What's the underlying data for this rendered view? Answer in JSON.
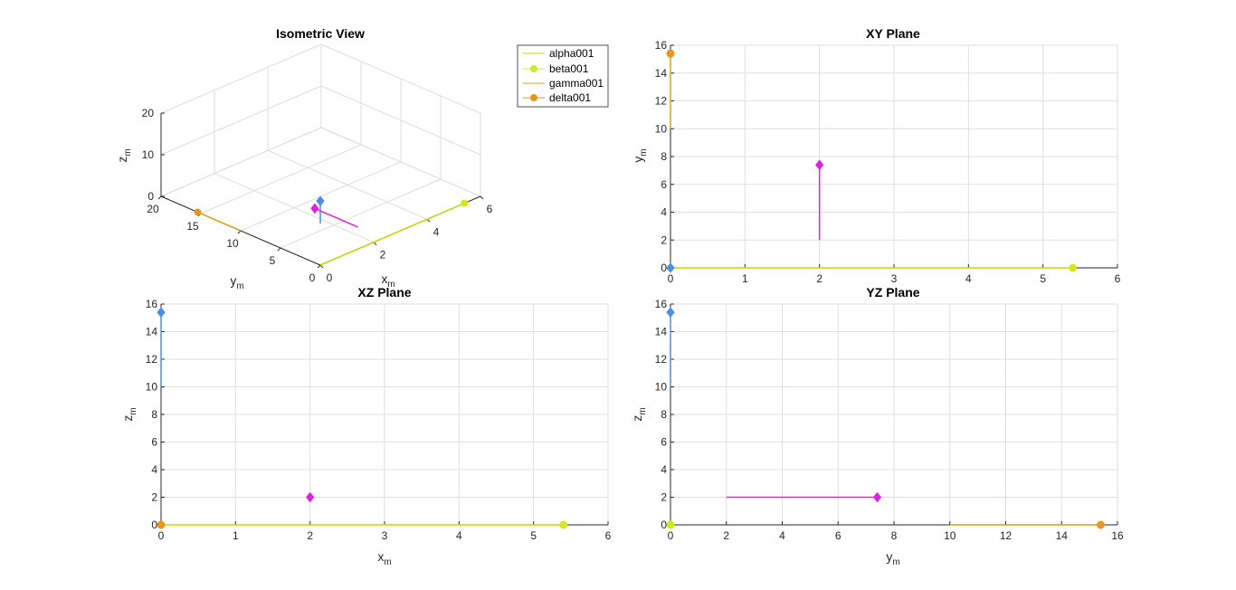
{
  "colors": {
    "alpha": "#c8d400",
    "beta": "#d4e81e",
    "gamma": "#d9a11a",
    "delta": "#e8961f",
    "blue": "#4a8fe0",
    "magenta": "#e020e0"
  },
  "legend": {
    "entries": [
      "alpha001",
      "beta001",
      "gamma001",
      "delta001"
    ]
  },
  "chart_data": [
    {
      "id": "iso",
      "type": "line",
      "title": "Isometric View",
      "xlabel": "x",
      "xlabel_sub": "m",
      "ylabel": "y",
      "ylabel_sub": "m",
      "zlabel": "z",
      "zlabel_sub": "m",
      "xlim": [
        0,
        6
      ],
      "ylim": [
        0,
        20
      ],
      "zlim": [
        0,
        20
      ],
      "xticks": [
        "0",
        "2",
        "4",
        "6"
      ],
      "yticks": [
        "0",
        "5",
        "10",
        "15",
        "20"
      ],
      "zticks": [
        "0",
        "10",
        "20"
      ],
      "grid": true,
      "series": [
        {
          "name": "alpha001",
          "x": [
            0,
            5.4
          ],
          "y": [
            0,
            0
          ],
          "z": [
            0,
            0
          ]
        },
        {
          "name": "beta001",
          "x": [
            5.4
          ],
          "y": [
            0
          ],
          "z": [
            0
          ]
        },
        {
          "name": "gamma001",
          "x": [
            0,
            0
          ],
          "y": [
            10,
            15.4
          ],
          "z": [
            0,
            0
          ]
        },
        {
          "name": "delta001",
          "x": [
            0
          ],
          "y": [
            15.4
          ],
          "z": [
            0
          ]
        }
      ]
    },
    {
      "id": "xy",
      "type": "line",
      "title": "XY Plane",
      "xlabel": "",
      "ylabel": "y",
      "ylabel_sub": "m",
      "xlim": [
        0,
        6
      ],
      "ylim": [
        0,
        16
      ],
      "xticks": [
        0,
        1,
        2,
        3,
        4,
        5,
        6
      ],
      "yticks": [
        0,
        2,
        4,
        6,
        8,
        10,
        12,
        14,
        16
      ],
      "grid": true,
      "series": [
        {
          "x": [
            0,
            5.4
          ],
          "y": [
            0,
            0
          ],
          "color": "alpha",
          "marker_end": true,
          "marker_color": "beta"
        },
        {
          "x": [
            0,
            0
          ],
          "y": [
            10,
            15.4
          ],
          "color": "gamma",
          "marker_end": true,
          "marker_color": "delta"
        },
        {
          "x": [
            2,
            2
          ],
          "y": [
            2,
            7.4
          ],
          "color": "magenta",
          "marker_end": true,
          "marker_color": "magenta"
        },
        {
          "x": [
            0
          ],
          "y": [
            0
          ],
          "color": "blue",
          "marker_end": true,
          "marker_color": "blue"
        }
      ]
    },
    {
      "id": "xz",
      "type": "line",
      "title": "XZ Plane",
      "xlabel": "x",
      "xlabel_sub": "m",
      "ylabel": "z",
      "ylabel_sub": "m",
      "xlim": [
        0,
        6
      ],
      "ylim": [
        0,
        16
      ],
      "xticks": [
        0,
        1,
        2,
        3,
        4,
        5,
        6
      ],
      "yticks": [
        0,
        2,
        4,
        6,
        8,
        10,
        12,
        14,
        16
      ],
      "grid": true,
      "series": [
        {
          "x": [
            0,
            5.4
          ],
          "y": [
            0,
            0
          ],
          "color": "alpha",
          "marker_end": true,
          "marker_color": "beta"
        },
        {
          "x": [
            0,
            0
          ],
          "y": [
            10,
            15.4
          ],
          "color": "blue",
          "marker_end": true,
          "marker_color": "blue"
        },
        {
          "x": [
            2
          ],
          "y": [
            2
          ],
          "color": "magenta",
          "marker_end": true,
          "marker_color": "magenta"
        },
        {
          "x": [
            0
          ],
          "y": [
            0
          ],
          "color": "delta",
          "marker_end": true,
          "marker_color": "delta"
        }
      ]
    },
    {
      "id": "yz",
      "type": "line",
      "title": "YZ Plane",
      "xlabel": "y",
      "xlabel_sub": "m",
      "ylabel": "z",
      "ylabel_sub": "m",
      "xlim": [
        0,
        16
      ],
      "ylim": [
        0,
        16
      ],
      "xticks": [
        0,
        2,
        4,
        6,
        8,
        10,
        12,
        14,
        16
      ],
      "yticks": [
        0,
        2,
        4,
        6,
        8,
        10,
        12,
        14,
        16
      ],
      "grid": true,
      "series": [
        {
          "x": [
            10,
            15.4
          ],
          "y": [
            0,
            0
          ],
          "color": "gamma",
          "marker_end": true,
          "marker_color": "delta"
        },
        {
          "x": [
            0,
            0
          ],
          "y": [
            10,
            15.4
          ],
          "color": "blue",
          "marker_end": true,
          "marker_color": "blue"
        },
        {
          "x": [
            2,
            7.4
          ],
          "y": [
            2,
            2
          ],
          "color": "magenta",
          "marker_end": true,
          "marker_color": "magenta"
        },
        {
          "x": [
            0
          ],
          "y": [
            0
          ],
          "color": "beta",
          "marker_end": true,
          "marker_color": "beta"
        }
      ]
    }
  ]
}
